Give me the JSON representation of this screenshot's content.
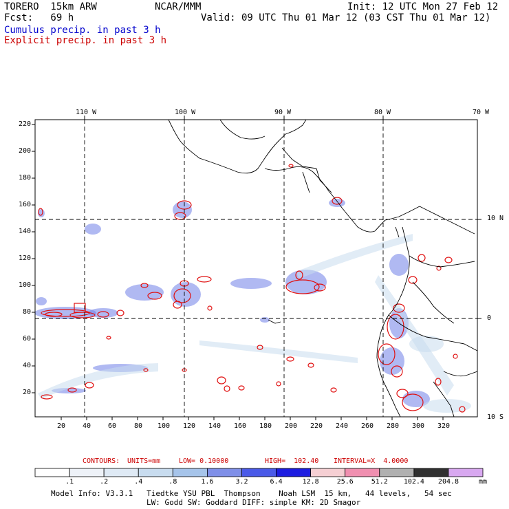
{
  "header": {
    "model": "TORERO  15km ARW",
    "org": "NCAR/MMM",
    "init": "Init: 12 UTC Mon 27 Feb 12",
    "fcst": "Fcst:   69 h",
    "valid": "Valid: 09 UTC Thu 01 Mar 12 (03 CST Thu 01 Mar 12)",
    "legend_cumulus": "Cumulus precip. in past 3 h",
    "legend_explicit": "Explicit precip. in past 3 h"
  },
  "map": {
    "lon_labels": [
      "110 W",
      "100 W",
      "90 W",
      "80 W",
      "70 W"
    ],
    "lat_labels": [
      "10 N",
      "0",
      "10 S"
    ],
    "y_ticks": [
      "220",
      "200",
      "180",
      "160",
      "140",
      "120",
      "100",
      "80",
      "60",
      "40",
      "20"
    ],
    "x_ticks": [
      "20",
      "40",
      "60",
      "80",
      "100",
      "120",
      "140",
      "160",
      "180",
      "200",
      "220",
      "240",
      "260",
      "280",
      "300",
      "320"
    ]
  },
  "contours": {
    "prefix": "CONTOURS:",
    "units": "UNITS=mm",
    "low": "LOW= 0.10000",
    "high": "HIGH=  102.40",
    "interval": "INTERVAL=X  4.0000"
  },
  "colorbar": {
    "labels": [
      ".1",
      ".2",
      ".4",
      ".8",
      "1.6",
      "3.2",
      "6.4",
      "12.8",
      "25.6",
      "51.2",
      "102.4",
      "204.8"
    ],
    "unit": "mm",
    "colors": [
      "#ffffff",
      "#eef2f8",
      "#dfeaf5",
      "#c8dcef",
      "#a6c4ea",
      "#7f8fe8",
      "#4a5ae8",
      "#1c1ce0",
      "#f5cfd3",
      "#f08fb0",
      "#b0b0b0",
      "#303030",
      "#d8a8f0"
    ]
  },
  "footer": {
    "line1": "Model Info: V3.3.1   Tiedtke YSU PBL  Thompson    Noah LSM  15 km,   44 levels,   54 sec",
    "line2": "LW: Godd SW: Goddard DIFF: simple KM: 2D Smagor"
  }
}
